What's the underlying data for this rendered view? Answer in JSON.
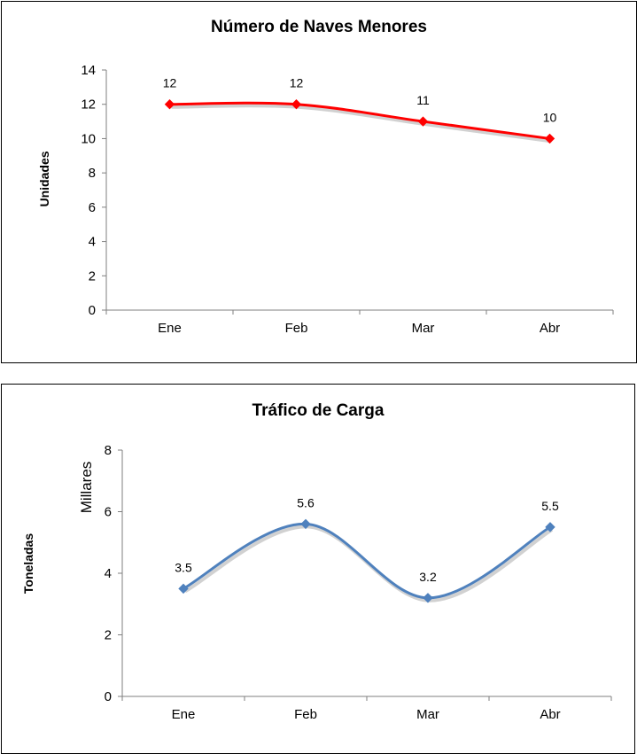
{
  "chart_data": [
    {
      "type": "line",
      "title": "Número de Naves Menores",
      "ylabel": "Unidades",
      "categories": [
        "Ene",
        "Feb",
        "Mar",
        "Abr"
      ],
      "values": [
        12,
        12,
        11,
        10
      ],
      "data_labels": [
        "12",
        "12",
        "11",
        "10"
      ],
      "ylim": [
        0,
        14
      ],
      "yticks": [
        "0",
        "2",
        "4",
        "6",
        "8",
        "10",
        "12",
        "14"
      ],
      "ytick_values": [
        0,
        2,
        4,
        6,
        8,
        10,
        12,
        14
      ],
      "smooth": true,
      "grid": false,
      "color": "#ff0000",
      "marker": "diamond"
    },
    {
      "type": "line",
      "title": "Tráfico de Carga",
      "ylabel": "Toneladas",
      "yunit_label": "Millares",
      "categories": [
        "Ene",
        "Feb",
        "Mar",
        "Abr"
      ],
      "values": [
        3.5,
        5.6,
        3.2,
        5.5
      ],
      "data_labels": [
        "3.5",
        "5.6",
        "3.2",
        "5.5"
      ],
      "ylim": [
        0,
        8
      ],
      "yticks": [
        "0",
        "2",
        "4",
        "6",
        "8"
      ],
      "ytick_values": [
        0,
        2,
        4,
        6,
        8
      ],
      "smooth": true,
      "grid": false,
      "color": "#4f81bd",
      "marker": "diamond"
    }
  ]
}
